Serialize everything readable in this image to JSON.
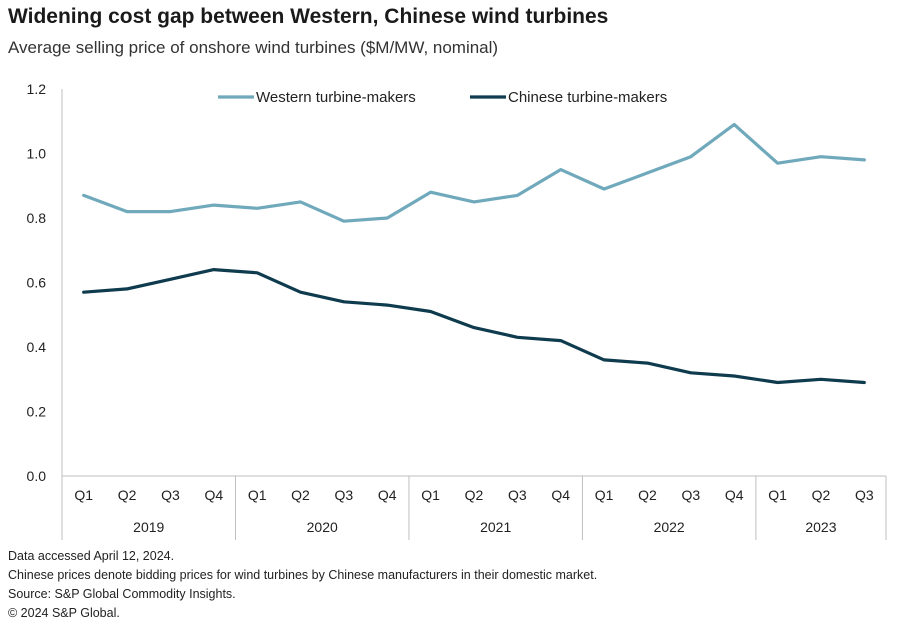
{
  "title": "Widening cost gap between Western, Chinese wind turbines",
  "subtitle": "Average selling price of onshore wind turbines ($M/MW, nominal)",
  "chart_data": {
    "type": "line",
    "title": "Widening cost gap between Western, Chinese wind turbines",
    "ylabel": "$M/MW",
    "xlabel": "",
    "ylim": [
      0,
      1.2
    ],
    "yticks": [
      "0.0",
      "0.2",
      "0.4",
      "0.6",
      "0.8",
      "1.0",
      "1.2"
    ],
    "years": [
      "2019",
      "2020",
      "2021",
      "2022",
      "2023"
    ],
    "categories": [
      "Q1",
      "Q2",
      "Q3",
      "Q4",
      "Q1",
      "Q2",
      "Q3",
      "Q4",
      "Q1",
      "Q2",
      "Q3",
      "Q4",
      "Q1",
      "Q2",
      "Q3",
      "Q4",
      "Q1",
      "Q2",
      "Q3"
    ],
    "series": [
      {
        "name": "Western turbine-makers",
        "color": "#6fa9bb",
        "values": [
          0.87,
          0.82,
          0.82,
          0.84,
          0.83,
          0.85,
          0.79,
          0.8,
          0.88,
          0.85,
          0.87,
          0.95,
          0.89,
          0.94,
          0.99,
          1.09,
          0.97,
          0.99,
          0.98
        ]
      },
      {
        "name": "Chinese turbine-makers",
        "color": "#0f3b4e",
        "values": [
          0.57,
          0.58,
          0.61,
          0.64,
          0.63,
          0.57,
          0.54,
          0.53,
          0.51,
          0.46,
          0.43,
          0.42,
          0.36,
          0.35,
          0.32,
          0.31,
          0.29,
          0.3,
          0.29
        ]
      }
    ],
    "legend": "top-center"
  },
  "footer": {
    "line1": "Data accessed April 12, 2024.",
    "line2": "Chinese prices denote bidding prices for wind turbines by Chinese manufacturers in their domestic market.",
    "line3": "Source: S&P Global Commodity Insights.",
    "line4": "© 2024 S&P Global."
  }
}
